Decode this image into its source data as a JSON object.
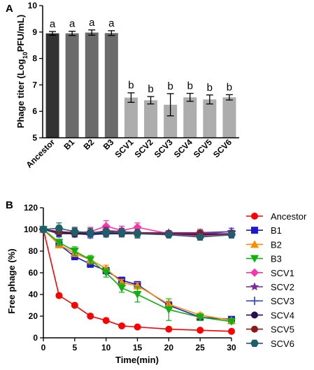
{
  "chart_data": [
    {
      "panel": "A",
      "type": "bar",
      "ylabel_parts": [
        "Phage titer (Log",
        "10",
        "PFU/mL)"
      ],
      "ylim": [
        5,
        10
      ],
      "yticks": [
        5,
        6,
        7,
        8,
        9,
        10
      ],
      "categories": [
        "Ancestor",
        "B1",
        "B2",
        "B3",
        "SCV1",
        "SCV2",
        "SCV3",
        "SCV4",
        "SCV5",
        "SCV6"
      ],
      "values": [
        8.95,
        8.95,
        8.98,
        8.96,
        6.52,
        6.42,
        6.25,
        6.53,
        6.45,
        6.53
      ],
      "errors": [
        0.07,
        0.08,
        0.1,
        0.09,
        0.18,
        0.14,
        0.42,
        0.15,
        0.17,
        0.1
      ],
      "sig_letters": [
        "a",
        "a",
        "a",
        "a",
        "b",
        "b",
        "b",
        "b",
        "b",
        "b"
      ],
      "bar_colors": [
        "#333333",
        "#6b6b6b",
        "#6b6b6b",
        "#6b6b6b",
        "#adadad",
        "#adadad",
        "#adadad",
        "#adadad",
        "#adadad",
        "#adadad"
      ]
    },
    {
      "panel": "B",
      "type": "line",
      "xlabel": "Time(min)",
      "ylabel": "Free phage (%)",
      "xlim": [
        0,
        30
      ],
      "ylim": [
        0,
        120
      ],
      "xticks": [
        0,
        5,
        10,
        15,
        20,
        25,
        30
      ],
      "yticks": [
        0,
        20,
        40,
        60,
        80,
        100,
        120
      ],
      "x": [
        0,
        2.5,
        5,
        7.5,
        10,
        12.5,
        15,
        20,
        25,
        30
      ],
      "legend_position": "right",
      "series": [
        {
          "name": "Ancestor",
          "color": "#ff0000",
          "marker": "circle",
          "values": [
            100,
            39,
            30,
            20,
            16,
            11,
            10,
            8,
            7,
            6
          ],
          "errors": [
            0,
            0,
            0,
            0,
            0,
            0,
            0,
            0,
            0,
            0
          ]
        },
        {
          "name": "B1",
          "color": "#1a1acc",
          "marker": "square",
          "values": [
            100,
            86,
            75,
            68,
            62,
            53,
            49,
            30,
            19,
            17
          ],
          "errors": [
            0,
            3,
            3,
            3,
            3,
            3,
            3,
            3,
            2,
            2
          ]
        },
        {
          "name": "B2",
          "color": "#ff8c00",
          "marker": "triangle-up",
          "values": [
            100,
            86,
            78,
            72,
            64,
            51,
            48,
            31,
            21,
            16
          ],
          "errors": [
            0,
            3,
            3,
            3,
            3,
            3,
            3,
            3,
            2,
            2
          ]
        },
        {
          "name": "B3",
          "color": "#10b010",
          "marker": "triangle-down",
          "values": [
            100,
            88,
            80,
            72,
            60,
            46,
            40,
            26,
            19,
            15
          ],
          "errors": [
            0,
            3,
            4,
            4,
            4,
            4,
            7,
            10,
            3,
            2
          ]
        },
        {
          "name": "SCV1",
          "color": "#ff33aa",
          "marker": "diamond",
          "values": [
            100,
            98,
            97,
            98,
            103,
            99,
            102,
            96,
            94,
            96
          ],
          "errors": [
            0,
            3,
            4,
            4,
            5,
            4,
            4,
            2,
            3,
            3
          ]
        },
        {
          "name": "SCV2",
          "color": "#7a2a9a",
          "marker": "star",
          "values": [
            100,
            96,
            98,
            96,
            99,
            98,
            97,
            97,
            97,
            98
          ],
          "errors": [
            0,
            3,
            3,
            3,
            3,
            3,
            3,
            2,
            3,
            3
          ]
        },
        {
          "name": "SCV3",
          "color": "#3a4de6",
          "marker": "plus",
          "values": [
            100,
            96,
            96,
            95,
            96,
            97,
            96,
            96,
            96,
            98
          ],
          "errors": [
            0,
            3,
            3,
            3,
            3,
            3,
            3,
            2,
            3,
            3
          ]
        },
        {
          "name": "SCV4",
          "color": "#2a1050",
          "marker": "circle",
          "values": [
            100,
            97,
            96,
            96,
            96,
            96,
            96,
            96,
            95,
            96
          ],
          "errors": [
            0,
            3,
            3,
            3,
            3,
            3,
            3,
            2,
            3,
            3
          ]
        },
        {
          "name": "SCV5",
          "color": "#8b1a1a",
          "marker": "circle",
          "values": [
            100,
            98,
            97,
            97,
            98,
            97,
            97,
            96,
            96,
            96
          ],
          "errors": [
            0,
            3,
            3,
            3,
            3,
            3,
            3,
            2,
            3,
            3
          ]
        },
        {
          "name": "SCV6",
          "color": "#1f5f6b",
          "marker": "hexagon",
          "values": [
            100,
            101,
            98,
            97,
            97,
            97,
            96,
            95,
            93,
            95
          ],
          "errors": [
            0,
            5,
            4,
            4,
            4,
            4,
            4,
            2,
            3,
            3
          ]
        }
      ]
    }
  ]
}
